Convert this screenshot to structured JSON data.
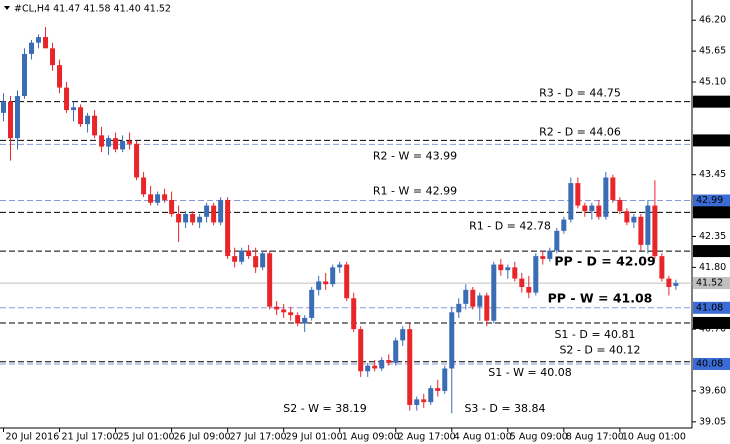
{
  "chart_data": {
    "type": "candlestick",
    "title": "#CL,H4 41.47 41.58 41.40 41.52",
    "up_color": "#3b6db4",
    "down_color": "#e8262a",
    "ylim": [
      38.94,
      46.56
    ],
    "xlim": [
      -0.5,
      98.3
    ],
    "yticks": [
      {
        "value": 46.2,
        "label": "46.20"
      },
      {
        "value": 45.65,
        "label": "45.65"
      },
      {
        "value": 45.1,
        "label": "45.10"
      },
      {
        "value": 43.45,
        "label": "43.45"
      },
      {
        "value": 42.35,
        "label": "42.35"
      },
      {
        "value": 41.8,
        "label": "41.80"
      },
      {
        "value": 40.7,
        "label": "40.70"
      },
      {
        "value": 39.6,
        "label": "39.60"
      },
      {
        "value": 39.05,
        "label": "39.05"
      }
    ],
    "xticks": [
      {
        "value": 0,
        "label": "20 Jul 2016"
      },
      {
        "value": 8,
        "label": "21 Jul 17:00"
      },
      {
        "value": 16,
        "label": "25 Jul 01:00"
      },
      {
        "value": 24,
        "label": "26 Jul 09:00"
      },
      {
        "value": 32,
        "label": "27 Jul 17:00"
      },
      {
        "value": 40,
        "label": "29 Jul 01:00"
      },
      {
        "value": 48,
        "label": "1 Aug 09:00"
      },
      {
        "value": 56,
        "label": "2 Aug 17:00"
      },
      {
        "value": 64,
        "label": "4 Aug 01:00"
      },
      {
        "value": 72,
        "label": "5 Aug 09:00"
      },
      {
        "value": 80,
        "label": "8 Aug 17:00"
      },
      {
        "value": 88,
        "label": "10 Aug 01:00"
      }
    ],
    "open": [
      44.55,
      44.75,
      44.1,
      44.85,
      45.6,
      45.8,
      45.9,
      45.7,
      45.4,
      45.0,
      44.6,
      44.65,
      44.35,
      44.5,
      44.15,
      43.95,
      44.1,
      43.9,
      44.05,
      44.0,
      43.4,
      43.1,
      42.95,
      43.1,
      43.0,
      42.75,
      42.6,
      42.75,
      42.6,
      42.7,
      42.9,
      42.6,
      43.0,
      42.0,
      41.9,
      42.1,
      42.0,
      41.8,
      42.05,
      41.1,
      41.05,
      41.0,
      40.95,
      40.8,
      40.9,
      41.4,
      41.55,
      41.5,
      41.8,
      41.85,
      41.25,
      40.7,
      39.95,
      40.05,
      40.0,
      40.15,
      40.1,
      40.5,
      40.7,
      39.35,
      39.45,
      39.4,
      39.65,
      39.6,
      40.0,
      41.0,
      41.15,
      41.4,
      41.1,
      41.3,
      40.85,
      41.85,
      41.75,
      41.8,
      41.6,
      41.45,
      41.35,
      42.0,
      41.95,
      42.1,
      42.45,
      42.65,
      43.3,
      42.9,
      42.8,
      42.9,
      42.7,
      43.4,
      43.0,
      42.8,
      42.6,
      42.7,
      42.2,
      42.9,
      42.0,
      41.6,
      41.47
    ],
    "high": [
      44.9,
      44.85,
      44.95,
      45.7,
      45.85,
      45.95,
      46.08,
      45.8,
      45.5,
      45.1,
      44.75,
      44.7,
      44.55,
      44.6,
      44.3,
      44.15,
      44.2,
      44.15,
      44.2,
      44.05,
      43.5,
      43.25,
      43.15,
      43.2,
      43.15,
      42.9,
      42.8,
      42.8,
      42.75,
      42.95,
      42.95,
      43.05,
      43.05,
      42.15,
      42.15,
      42.2,
      42.15,
      42.1,
      42.1,
      41.2,
      41.15,
      41.1,
      41.0,
      40.95,
      41.45,
      41.65,
      41.7,
      41.85,
      41.9,
      41.9,
      41.35,
      40.75,
      40.1,
      40.15,
      40.2,
      40.25,
      40.55,
      40.75,
      40.8,
      39.5,
      39.55,
      39.7,
      39.8,
      40.05,
      41.1,
      41.25,
      41.5,
      41.45,
      41.35,
      41.35,
      41.9,
      41.95,
      41.85,
      41.9,
      41.7,
      41.65,
      42.05,
      42.1,
      42.15,
      42.5,
      42.7,
      43.4,
      43.4,
      42.95,
      42.95,
      43.0,
      43.5,
      43.45,
      43.05,
      42.85,
      42.75,
      42.75,
      43.0,
      43.35,
      42.05,
      41.65,
      41.58
    ],
    "low": [
      44.4,
      43.7,
      43.9,
      44.8,
      45.5,
      45.7,
      45.75,
      45.3,
      44.9,
      44.55,
      44.4,
      44.3,
      44.2,
      44.1,
      43.85,
      43.8,
      43.85,
      43.85,
      43.9,
      43.35,
      43.05,
      42.9,
      42.9,
      42.95,
      42.7,
      42.25,
      42.5,
      42.55,
      42.5,
      42.6,
      42.55,
      42.55,
      41.95,
      41.8,
      41.85,
      41.95,
      41.7,
      41.75,
      41.05,
      40.95,
      40.9,
      40.85,
      40.75,
      40.65,
      40.85,
      41.3,
      41.4,
      41.45,
      41.7,
      41.2,
      40.65,
      39.85,
      39.85,
      39.95,
      39.95,
      40.05,
      40.05,
      40.4,
      39.25,
      39.25,
      39.3,
      39.35,
      39.5,
      39.55,
      39.2,
      40.9,
      41.05,
      41.05,
      40.85,
      40.75,
      40.8,
      41.65,
      41.6,
      41.55,
      41.35,
      41.25,
      41.3,
      41.85,
      41.9,
      42.05,
      42.4,
      42.6,
      42.85,
      42.7,
      42.65,
      42.65,
      42.65,
      42.95,
      42.75,
      42.55,
      42.5,
      42.1,
      42.05,
      41.95,
      41.55,
      41.3,
      41.4
    ],
    "close": [
      44.75,
      44.1,
      44.85,
      45.6,
      45.8,
      45.9,
      45.7,
      45.4,
      45.0,
      44.6,
      44.65,
      44.35,
      44.5,
      44.15,
      43.95,
      44.1,
      43.9,
      44.05,
      44.0,
      43.4,
      43.1,
      42.95,
      43.1,
      43.0,
      42.75,
      42.6,
      42.75,
      42.6,
      42.7,
      42.9,
      42.6,
      43.0,
      42.0,
      41.9,
      42.1,
      42.0,
      41.8,
      42.05,
      41.1,
      41.05,
      41.0,
      40.95,
      40.8,
      40.9,
      41.4,
      41.55,
      41.5,
      41.8,
      41.85,
      41.25,
      40.7,
      39.95,
      40.05,
      40.0,
      40.15,
      40.1,
      40.5,
      40.7,
      39.35,
      39.45,
      39.4,
      39.65,
      39.6,
      40.0,
      41.0,
      41.15,
      41.4,
      41.1,
      41.3,
      40.85,
      41.85,
      41.75,
      41.8,
      41.6,
      41.45,
      41.35,
      42.0,
      41.95,
      42.1,
      42.45,
      42.65,
      43.3,
      42.9,
      42.8,
      42.9,
      42.7,
      43.4,
      43.0,
      42.8,
      42.6,
      42.7,
      42.2,
      42.9,
      42.0,
      41.6,
      41.45,
      41.52
    ],
    "last_price": 41.52,
    "levels": [
      {
        "label": "R3 - D = 44.75",
        "value": 44.75,
        "color": "#e8262a",
        "line_color": "#000000",
        "box": true
      },
      {
        "label": "R2 - D = 44.06",
        "value": 44.06,
        "color": "#e8262a",
        "line_color": "#000000",
        "box": true
      },
      {
        "label": "R2 - W = 43.99",
        "value": 43.99,
        "color": "#8a8fd6",
        "line_color": "#8a9ad8",
        "box": false
      },
      {
        "label": "R1 - W = 42.99",
        "value": 42.99,
        "color": "#8a8fd6",
        "line_color": "#8a9ad8",
        "box": true
      },
      {
        "label": "R1 - D = 42.78",
        "value": 42.78,
        "color": "#e8262a",
        "line_color": "#000000",
        "box": true
      },
      {
        "label": "PP - D = 42.09",
        "value": 42.09,
        "color": "#3556c8",
        "line_color": "#000000",
        "box": true
      },
      {
        "label": "PP - W = 41.08",
        "value": 41.08,
        "color": "#3556c8",
        "line_color": "#8a9ad8",
        "box": true
      },
      {
        "label": "S1 - D = 40.81",
        "value": 40.81,
        "color": "#e8262a",
        "line_color": "#000000",
        "box": true
      },
      {
        "label": "S2 - D = 40.12",
        "value": 40.12,
        "color": "#e8262a",
        "line_color": "#000000",
        "box": false
      },
      {
        "label": "S1 - W = 40.08",
        "value": 40.08,
        "color": "#8a8fd6",
        "line_color": "#8a9ad8",
        "box": true
      },
      {
        "label": "S2 - W = 38.19",
        "value": 38.19,
        "color": "#8a8fd6",
        "line_color": "#8a9ad8",
        "box": false
      },
      {
        "label": "S3 - D = 38.84",
        "value": 38.84,
        "color": "#e8262a",
        "line_color": "#000000",
        "box": false
      }
    ]
  }
}
